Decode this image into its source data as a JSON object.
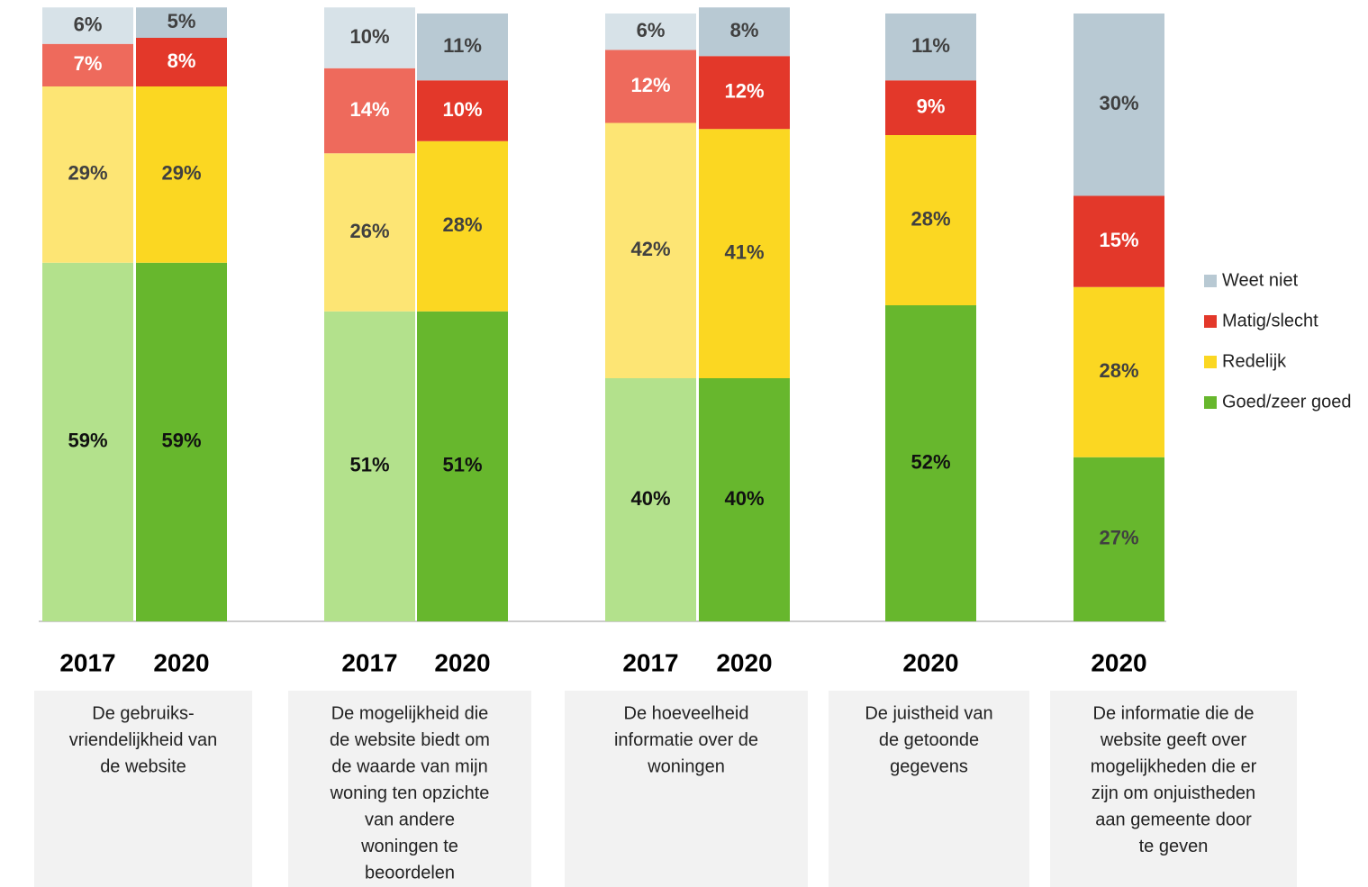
{
  "chart_data": {
    "type": "stacked_bar",
    "ylim": [
      0,
      100
    ],
    "series": [
      {
        "name": "Goed/zeer goed",
        "color": "#67b72d"
      },
      {
        "name": "Redelijk",
        "color": "#fbd722"
      },
      {
        "name": "Matig/slecht",
        "color": "#e3382a"
      },
      {
        "name": "Weet niet",
        "color": "#b8c9d3"
      }
    ],
    "groups": [
      {
        "label_lines": [
          "De gebruiks-",
          "vriendelijkheid van",
          "de website"
        ],
        "bars": [
          {
            "year": "2017",
            "values": [
              59,
              29,
              7,
              6
            ],
            "value_labels": [
              "59%",
              "29%",
              "7%",
              "6%"
            ],
            "colors": [
              "#b3e18c",
              "#fde574",
              "#ee6a5c",
              "#d7e2e8"
            ]
          },
          {
            "year": "2020",
            "values": [
              59,
              29,
              8,
              5
            ],
            "value_labels": [
              "59%",
              "29%",
              "8%",
              "5%"
            ],
            "colors": [
              "#67b72d",
              "#fbd722",
              "#e3382a",
              "#b8c9d3"
            ]
          }
        ]
      },
      {
        "label_lines": [
          "De mogelijkheid die",
          "de website biedt om",
          "de waarde van mijn",
          "woning ten opzichte",
          "van andere",
          "woningen te",
          "beoordelen"
        ],
        "bars": [
          {
            "year": "2017",
            "values": [
              51,
              26,
              14,
              10
            ],
            "value_labels": [
              "51%",
              "26%",
              "14%",
              "10%"
            ],
            "colors": [
              "#b3e18c",
              "#fde574",
              "#ee6a5c",
              "#d7e2e8"
            ]
          },
          {
            "year": "2020",
            "values": [
              51,
              28,
              10,
              11
            ],
            "value_labels": [
              "51%",
              "28%",
              "10%",
              "11%"
            ],
            "colors": [
              "#67b72d",
              "#fbd722",
              "#e3382a",
              "#b8c9d3"
            ]
          }
        ]
      },
      {
        "label_lines": [
          "De hoeveelheid",
          "informatie over de",
          "woningen"
        ],
        "bars": [
          {
            "year": "2017",
            "values": [
              40,
              42,
              12,
              6
            ],
            "value_labels": [
              "40%",
              "42%",
              "12%",
              "6%"
            ],
            "colors": [
              "#b3e18c",
              "#fde574",
              "#ee6a5c",
              "#d7e2e8"
            ]
          },
          {
            "year": "2020",
            "values": [
              40,
              41,
              12,
              8
            ],
            "value_labels": [
              "40%",
              "41%",
              "12%",
              "8%"
            ],
            "colors": [
              "#67b72d",
              "#fbd722",
              "#e3382a",
              "#b8c9d3"
            ]
          }
        ]
      },
      {
        "label_lines": [
          "De juistheid van",
          "de getoonde",
          "gegevens"
        ],
        "bars": [
          {
            "year": "2020",
            "values": [
              52,
              28,
              9,
              11
            ],
            "value_labels": [
              "52%",
              "28%",
              "9%",
              "11%"
            ],
            "colors": [
              "#67b72d",
              "#fbd722",
              "#e3382a",
              "#b8c9d3"
            ]
          }
        ]
      },
      {
        "label_lines": [
          "De informatie die de",
          "website geeft over",
          "mogelijkheden die er",
          "zijn om onjuistheden",
          "aan gemeente door",
          "te geven"
        ],
        "bars": [
          {
            "year": "2020",
            "values": [
              27,
              28,
              15,
              30
            ],
            "value_labels": [
              "27%",
              "28%",
              "15%",
              "30%"
            ],
            "colors": [
              "#67b72d",
              "#fbd722",
              "#e3382a",
              "#b8c9d3"
            ]
          }
        ]
      }
    ]
  }
}
